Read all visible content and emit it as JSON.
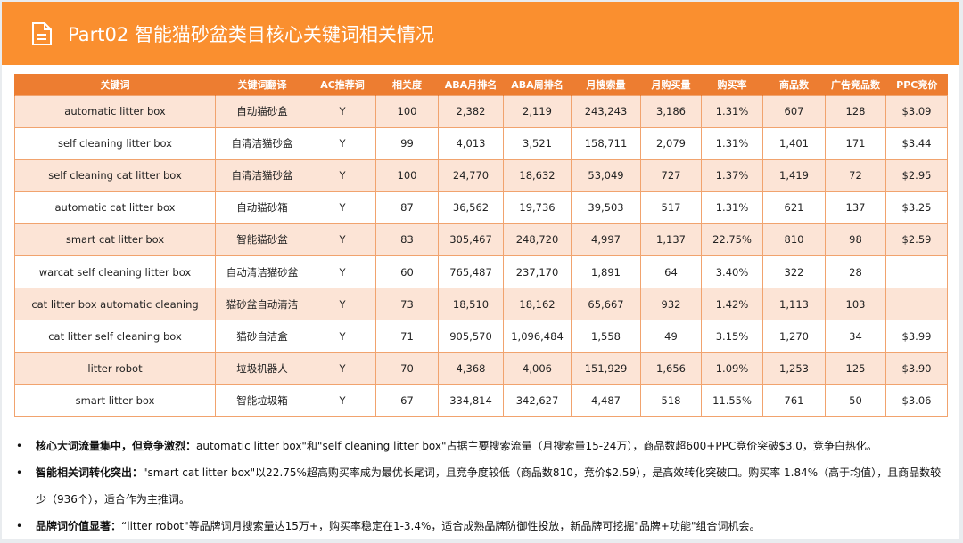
{
  "header": {
    "title": "Part02 智能猫砂盆类目核心关键词相关情况",
    "icon": "document-icon",
    "color": "#fa8f2f"
  },
  "table": {
    "columns": [
      "关键词",
      "关键词翻译",
      "AC推荐词",
      "相关度",
      "ABA月排名",
      "ABA周排名",
      "月搜索量",
      "月购买量",
      "购买率",
      "商品数",
      "广告竞品数",
      "PPC竞价"
    ],
    "rows": [
      [
        "automatic litter box",
        "自动猫砂盒",
        "Y",
        "100",
        "2,382",
        "2,119",
        "243,243",
        "3,186",
        "1.31%",
        "607",
        "128",
        "$3.09"
      ],
      [
        "self cleaning litter box",
        "自清洁猫砂盒",
        "Y",
        "99",
        "4,013",
        "3,521",
        "158,711",
        "2,079",
        "1.31%",
        "1,401",
        "171",
        "$3.44"
      ],
      [
        "self cleaning cat litter box",
        "自清洁猫砂盆",
        "Y",
        "100",
        "24,770",
        "18,632",
        "53,049",
        "727",
        "1.37%",
        "1,419",
        "72",
        "$2.95"
      ],
      [
        "automatic cat litter box",
        "自动猫砂箱",
        "Y",
        "87",
        "36,562",
        "19,736",
        "39,503",
        "517",
        "1.31%",
        "621",
        "137",
        "$3.25"
      ],
      [
        "smart cat litter box",
        "智能猫砂盆",
        "Y",
        "83",
        "305,467",
        "248,720",
        "4,997",
        "1,137",
        "22.75%",
        "810",
        "98",
        "$2.59"
      ],
      [
        "warcat self cleaning litter box",
        "自动清洁猫砂盆",
        "Y",
        "60",
        "765,487",
        "237,170",
        "1,891",
        "64",
        "3.40%",
        "322",
        "28",
        ""
      ],
      [
        "cat litter box automatic cleaning",
        "猫砂盆自动清洁",
        "Y",
        "73",
        "18,510",
        "18,162",
        "65,667",
        "932",
        "1.42%",
        "1,113",
        "103",
        ""
      ],
      [
        "cat litter self cleaning box",
        "猫砂自洁盒",
        "Y",
        "71",
        "905,570",
        "1,096,484",
        "1,558",
        "49",
        "3.15%",
        "1,270",
        "34",
        "$3.99"
      ],
      [
        "litter robot",
        "垃圾机器人",
        "Y",
        "70",
        "4,368",
        "4,006",
        "151,929",
        "1,656",
        "1.09%",
        "1,253",
        "125",
        "$3.90"
      ],
      [
        "smart litter box",
        "智能垃圾箱",
        "Y",
        "67",
        "334,814",
        "342,627",
        "4,487",
        "518",
        "11.55%",
        "761",
        "50",
        "$3.06"
      ]
    ]
  },
  "notes": [
    {
      "label": "核心大词流量集中，但竞争激烈：",
      "text": "automatic litter box\"和\"self cleaning litter box\"占据主要搜索流量（月搜索量15-24万），商品数超600+PPC竞价突破$3.0，竞争白热化。"
    },
    {
      "label": "智能相关词转化突出：",
      "text": "\"smart cat litter box\"以22.75%超高购买率成为最优长尾词，且竞争度较低（商品数810，竞价$2.59），是高效转化突破口。购买率 1.84%（高于均值），且商品数较少（936个），适合作为主推词。"
    },
    {
      "label": "品牌词价值显著：",
      "text": "“litter robot\"等品牌词月搜索量达15万+，购买率稳定在1-3.4%，适合成熟品牌防御性投放，新品牌可挖掘\"品牌+功能\"组合词机会。"
    }
  ]
}
